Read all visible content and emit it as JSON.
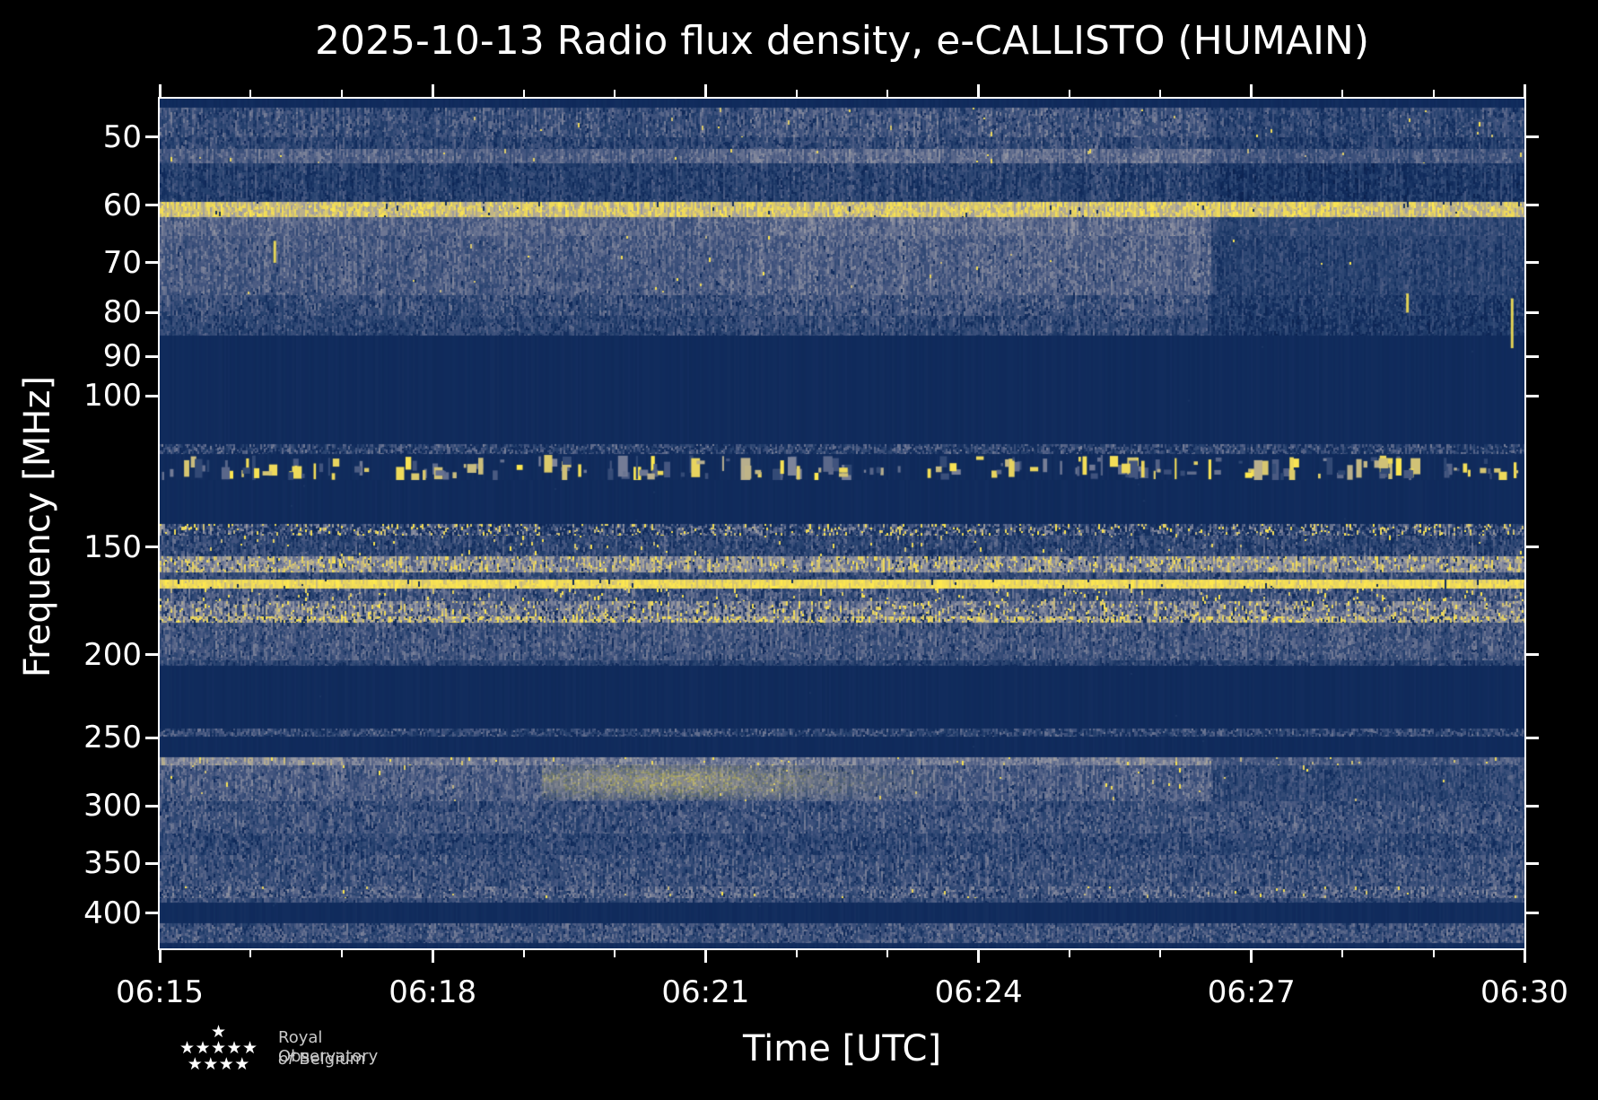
{
  "title": "2025-10-13 Radio flux density, e-CALLISTO (HUMAIN)",
  "x_axis": {
    "label": "Time [UTC]",
    "tick_labels": [
      "06:15",
      "06:18",
      "06:21",
      "06:24",
      "06:27",
      "06:30"
    ],
    "minor_tick_minutes": [
      1,
      2,
      4,
      5,
      7,
      8,
      10,
      11,
      13,
      14
    ]
  },
  "y_axis": {
    "label": "Frequency [MHz]",
    "scale": "log",
    "tick_labels": [
      "50",
      "60",
      "70",
      "80",
      "90",
      "100",
      "150",
      "200",
      "250",
      "300",
      "350",
      "400"
    ],
    "tick_values": [
      50,
      60,
      70,
      80,
      90,
      100,
      150,
      200,
      250,
      300,
      350,
      400
    ]
  },
  "logo": {
    "line1": "Royal Observatory",
    "line2_italic": "of",
    "line2_rest": "Belgium",
    "star_rows": [
      1,
      5,
      4
    ],
    "star_glyph": "★"
  },
  "chart_data": {
    "type": "heatmap",
    "title": "2025-10-13 Radio flux density, e-CALLISTO (HUMAIN)",
    "xlabel": "Time [UTC]",
    "ylabel": "Frequency [MHz]",
    "x_range_utc": [
      "06:15",
      "06:30"
    ],
    "duration_minutes": 15,
    "f_range": [
      45.1,
      439.4
    ],
    "grid": false,
    "legend": "none",
    "palette": [
      [
        0.0,
        "#0a1f4c"
      ],
      [
        0.13,
        "#102b5c"
      ],
      [
        0.3,
        "#27426f"
      ],
      [
        0.45,
        "#42547e"
      ],
      [
        0.6,
        "#6f7894"
      ],
      [
        0.72,
        "#9597a3"
      ],
      [
        0.82,
        "#bdb28a"
      ],
      [
        0.9,
        "#e8d45f"
      ],
      [
        1.0,
        "#ffe94e"
      ]
    ],
    "bands": [
      {
        "f": [
          45.0,
          46.2
        ],
        "kind": "solid",
        "m": 0.13,
        "cv": 0.02
      },
      {
        "f": [
          46.2,
          50.0
        ],
        "kind": "noise",
        "m": 0.4,
        "cv": 0.1,
        "pv": 0.16,
        "yp": 0.004,
        "np": 0.05,
        "segs": [
          [
            0,
            0
          ],
          [
            6.45,
            0.04
          ],
          [
            11.55,
            -0.05
          ]
        ]
      },
      {
        "f": [
          50.0,
          51.6
        ],
        "kind": "noise",
        "m": 0.34,
        "cv": 0.1,
        "pv": 0.15,
        "np": 0.08,
        "segs": [
          [
            0,
            0
          ],
          [
            6.45,
            0.04
          ],
          [
            11.55,
            -0.05
          ]
        ]
      },
      {
        "f": [
          51.6,
          53.6
        ],
        "kind": "noise",
        "m": 0.5,
        "cv": 0.08,
        "pv": 0.12,
        "yp": 0.006,
        "segs": [
          [
            0,
            0
          ],
          [
            6.45,
            0.04
          ],
          [
            11.55,
            -0.05
          ]
        ]
      },
      {
        "f": [
          53.6,
          59.4
        ],
        "kind": "noise",
        "m": 0.3,
        "cv": 0.1,
        "pv": 0.14,
        "np": 0.1,
        "segs": [
          [
            0,
            0
          ],
          [
            6.45,
            0.03
          ],
          [
            11.55,
            -0.06
          ]
        ]
      },
      {
        "f": [
          59.4,
          62.0
        ],
        "kind": "noise",
        "m": 0.86,
        "cv": 0.06,
        "pv": 0.1,
        "yp": 0.05,
        "np": 0.01,
        "ch": 5
      },
      {
        "f": [
          62.0,
          65.2
        ],
        "kind": "noise",
        "m": 0.52,
        "cv": 0.07,
        "pv": 0.12,
        "segs": [
          [
            0,
            0
          ],
          [
            6.45,
            0.03
          ],
          [
            11.55,
            -0.16
          ]
        ]
      },
      {
        "f": [
          65.2,
          76.4
        ],
        "kind": "noise",
        "m": 0.47,
        "cv": 0.07,
        "pv": 0.13,
        "yp": 0.002,
        "np": 0.02,
        "segs": [
          [
            0,
            0
          ],
          [
            6.45,
            0.04
          ],
          [
            11.55,
            -0.16
          ]
        ]
      },
      {
        "f": [
          76.4,
          80.6
        ],
        "kind": "noise",
        "m": 0.4,
        "cv": 0.08,
        "pv": 0.15,
        "np": 0.07,
        "segs": [
          [
            0,
            0
          ],
          [
            6.45,
            0.03
          ],
          [
            11.55,
            -0.14
          ]
        ]
      },
      {
        "f": [
          80.6,
          85.0
        ],
        "kind": "noise",
        "m": 0.35,
        "cv": 0.08,
        "pv": 0.14,
        "np": 0.09,
        "segs": [
          [
            0,
            0
          ],
          [
            6.45,
            0.02
          ],
          [
            11.55,
            -0.12
          ]
        ]
      },
      {
        "f": [
          85.0,
          113.9
        ],
        "kind": "solid",
        "m": 0.13,
        "cv": 0.015
      },
      {
        "f": [
          113.9,
          116.9
        ],
        "kind": "noise",
        "m": 0.38,
        "cv": 0.06,
        "pv": 0.22,
        "np": 0.25,
        "ch": 3
      },
      {
        "f": [
          116.9,
          125.4
        ],
        "kind": "airband"
      },
      {
        "f": [
          125.4,
          140.9
        ],
        "kind": "solid",
        "m": 0.13,
        "cv": 0.015
      },
      {
        "f": [
          140.9,
          145.3
        ],
        "kind": "noise",
        "m": 0.42,
        "cv": 0.1,
        "pv": 0.28,
        "yp": 0.1,
        "np": 0.22,
        "ch": 3
      },
      {
        "f": [
          145.3,
          153.6
        ],
        "kind": "noise",
        "m": 0.36,
        "cv": 0.09,
        "pv": 0.16,
        "yp": 0.012,
        "np": 0.1
      },
      {
        "f": [
          153.6,
          160.4
        ],
        "kind": "noise",
        "m": 0.68,
        "cv": 0.1,
        "pv": 0.18,
        "yp": 0.1,
        "np": 0.04,
        "ch": 4
      },
      {
        "f": [
          160.4,
          163.5
        ],
        "kind": "noise",
        "m": 0.4,
        "cv": 0.08,
        "pv": 0.15,
        "np": 0.08
      },
      {
        "f": [
          163.5,
          167.4
        ],
        "kind": "noise",
        "m": 0.93,
        "cv": 0.04,
        "pv": 0.07,
        "yp": 0.15,
        "np": 0.02,
        "ch": 6
      },
      {
        "f": [
          167.4,
          173.5
        ],
        "kind": "noise",
        "m": 0.44,
        "cv": 0.09,
        "pv": 0.17,
        "yp": 0.04,
        "np": 0.06
      },
      {
        "f": [
          173.5,
          180.4
        ],
        "kind": "noise",
        "m": 0.6,
        "cv": 0.1,
        "pv": 0.2,
        "yp": 0.09,
        "np": 0.06,
        "ch": 4
      },
      {
        "f": [
          180.4,
          183.4
        ],
        "kind": "noise",
        "m": 0.74,
        "cv": 0.08,
        "pv": 0.22,
        "yp": 0.1,
        "np": 0.12,
        "ch": 3
      },
      {
        "f": [
          183.4,
          202.9
        ],
        "kind": "noise",
        "m": 0.44,
        "cv": 0.07,
        "pv": 0.15,
        "np": 0.05
      },
      {
        "f": [
          202.9,
          206.3
        ],
        "kind": "noise",
        "m": 0.33,
        "cv": 0.07,
        "pv": 0.14,
        "np": 0.1
      },
      {
        "f": [
          206.3,
          243.6
        ],
        "kind": "solid",
        "m": 0.13,
        "cv": 0.015
      },
      {
        "f": [
          243.6,
          248.9
        ],
        "kind": "noise",
        "m": 0.38,
        "cv": 0.06,
        "pv": 0.2,
        "np": 0.22,
        "ch": 3
      },
      {
        "f": [
          248.9,
          263.1
        ],
        "kind": "solid",
        "m": 0.13,
        "cv": 0.015
      },
      {
        "f": [
          263.1,
          269.4
        ],
        "kind": "noise",
        "m": 0.6,
        "cv": 0.06,
        "pv": 0.12,
        "yp": 0.02,
        "ch": 4,
        "segs": [
          [
            0,
            0.08
          ],
          [
            2,
            0
          ],
          [
            10.5,
            0.05
          ],
          [
            11.55,
            -0.14
          ]
        ]
      },
      {
        "f": [
          269.4,
          296.0
        ],
        "kind": "noise",
        "m": 0.48,
        "cv": 0.07,
        "pv": 0.14,
        "yp": 0.004,
        "np": 0.03,
        "segs": [
          [
            0,
            0
          ],
          [
            11.55,
            -0.13
          ]
        ]
      },
      {
        "f": [
          296.0,
          304.7
        ],
        "kind": "noise",
        "m": 0.4,
        "cv": 0.07,
        "pv": 0.15,
        "np": 0.1
      },
      {
        "f": [
          304.7,
          323.4
        ],
        "kind": "noise",
        "m": 0.43,
        "cv": 0.07,
        "pv": 0.15,
        "np": 0.07
      },
      {
        "f": [
          323.4,
          342.0
        ],
        "kind": "noise",
        "m": 0.37,
        "cv": 0.07,
        "pv": 0.15,
        "np": 0.1
      },
      {
        "f": [
          342.0,
          372.3
        ],
        "kind": "noise",
        "m": 0.42,
        "cv": 0.07,
        "pv": 0.16,
        "np": 0.08
      },
      {
        "f": [
          372.3,
          384.0
        ],
        "kind": "noise",
        "m": 0.48,
        "cv": 0.07,
        "pv": 0.18,
        "yp": 0.01,
        "np": 0.1,
        "ch": 3
      },
      {
        "f": [
          384.0,
          388.7
        ],
        "kind": "noise",
        "m": 0.38,
        "cv": 0.07,
        "pv": 0.14,
        "np": 0.08
      },
      {
        "f": [
          388.7,
          410.8
        ],
        "kind": "solid",
        "m": 0.14,
        "cv": 0.02
      },
      {
        "f": [
          410.8,
          433.0
        ],
        "kind": "noise",
        "m": 0.43,
        "cv": 0.07,
        "pv": 0.16,
        "np": 0.08,
        "ch": 3
      },
      {
        "f": [
          433.0,
          439.4
        ],
        "kind": "solid",
        "m": 0.14,
        "cv": 0.02
      }
    ],
    "features": [
      {
        "type": "diffuse-streak",
        "t_min": [
          4.2,
          8.6
        ],
        "t_peak_min": 5.6,
        "f": [
          268,
          294
        ],
        "f_center": 280,
        "strength": 0.6
      },
      {
        "type": "burst",
        "t_min": 1.25,
        "f": [
          66,
          70
        ]
      },
      {
        "type": "burst",
        "t_min": 13.7,
        "f": [
          76,
          80
        ]
      },
      {
        "type": "burst",
        "t_min": 14.85,
        "f": [
          77,
          88
        ]
      }
    ]
  }
}
